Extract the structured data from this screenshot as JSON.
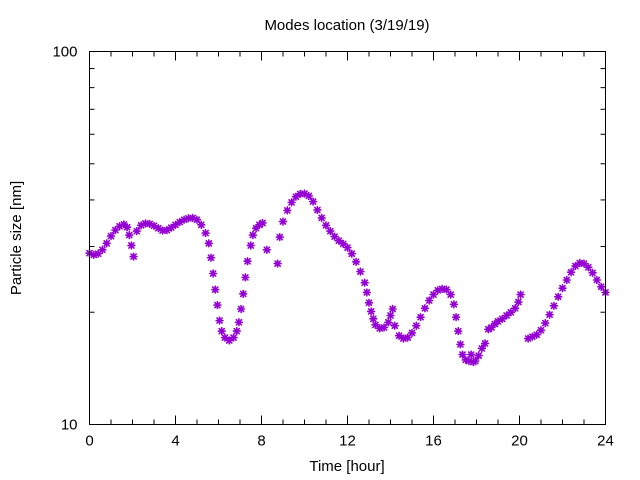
{
  "chart_data": {
    "type": "scatter",
    "title": "Modes location (3/19/19)",
    "xlabel": "Time [hour]",
    "ylabel": "Particle size [nm]",
    "xlim": [
      0,
      24
    ],
    "ylim": [
      10,
      100
    ],
    "y_scale": "log",
    "x_ticks": [
      0,
      4,
      8,
      12,
      16,
      20,
      24
    ],
    "x_tick_labels": [
      "0",
      "4",
      "8",
      "12",
      "16",
      "20",
      "24"
    ],
    "y_ticks": [
      10,
      100
    ],
    "y_tick_labels": [
      "10",
      "100"
    ],
    "grid": false,
    "legend": "none",
    "marker": "asterisk",
    "colors": {
      "series": "#9400d3",
      "axes": "#000000",
      "background": "#ffffff"
    },
    "series": [
      {
        "points": [
          [
            0.0,
            28.8
          ],
          [
            0.2,
            28.5
          ],
          [
            0.4,
            28.7
          ],
          [
            0.6,
            29.4
          ],
          [
            0.8,
            30.6
          ],
          [
            1.0,
            32.0
          ],
          [
            1.2,
            33.2
          ],
          [
            1.4,
            34.0
          ],
          [
            1.6,
            34.4
          ],
          [
            1.75,
            33.8
          ],
          [
            1.85,
            32.2
          ],
          [
            1.95,
            30.2
          ],
          [
            2.05,
            28.2
          ],
          [
            2.2,
            33.0
          ],
          [
            2.4,
            34.2
          ],
          [
            2.6,
            34.6
          ],
          [
            2.8,
            34.5
          ],
          [
            3.0,
            34.1
          ],
          [
            3.2,
            33.6
          ],
          [
            3.4,
            33.1
          ],
          [
            3.6,
            33.2
          ],
          [
            3.8,
            33.7
          ],
          [
            4.0,
            34.3
          ],
          [
            4.2,
            34.9
          ],
          [
            4.4,
            35.4
          ],
          [
            4.6,
            35.7
          ],
          [
            4.8,
            35.8
          ],
          [
            5.0,
            35.4
          ],
          [
            5.2,
            34.3
          ],
          [
            5.4,
            32.6
          ],
          [
            5.55,
            30.6
          ],
          [
            5.65,
            28.0
          ],
          [
            5.75,
            25.4
          ],
          [
            5.85,
            23.0
          ],
          [
            5.95,
            20.9
          ],
          [
            6.05,
            19.0
          ],
          [
            6.15,
            17.8
          ],
          [
            6.3,
            17.1
          ],
          [
            6.5,
            16.8
          ],
          [
            6.7,
            17.1
          ],
          [
            6.85,
            17.8
          ],
          [
            6.95,
            18.8
          ],
          [
            7.05,
            20.4
          ],
          [
            7.15,
            22.4
          ],
          [
            7.25,
            24.8
          ],
          [
            7.35,
            27.4
          ],
          [
            7.5,
            30.2
          ],
          [
            7.6,
            32.2
          ],
          [
            7.75,
            33.6
          ],
          [
            7.9,
            34.3
          ],
          [
            8.05,
            34.7
          ],
          [
            8.25,
            29.4
          ],
          [
            8.75,
            27.0
          ],
          [
            8.85,
            31.8
          ],
          [
            9.0,
            35.0
          ],
          [
            9.2,
            37.5
          ],
          [
            9.4,
            39.4
          ],
          [
            9.6,
            40.8
          ],
          [
            9.8,
            41.5
          ],
          [
            10.0,
            41.6
          ],
          [
            10.2,
            41.0
          ],
          [
            10.4,
            39.6
          ],
          [
            10.6,
            37.6
          ],
          [
            10.8,
            35.8
          ],
          [
            11.0,
            34.2
          ],
          [
            11.2,
            33.0
          ],
          [
            11.4,
            31.9
          ],
          [
            11.6,
            31.1
          ],
          [
            11.8,
            30.5
          ],
          [
            12.0,
            29.8
          ],
          [
            12.2,
            28.7
          ],
          [
            12.4,
            27.3
          ],
          [
            12.6,
            25.7
          ],
          [
            12.8,
            24.0
          ],
          [
            12.9,
            22.6
          ],
          [
            13.0,
            21.2
          ],
          [
            13.1,
            20.1
          ],
          [
            13.2,
            19.2
          ],
          [
            13.3,
            18.5
          ],
          [
            13.5,
            18.1
          ],
          [
            13.7,
            18.2
          ],
          [
            13.9,
            18.8
          ],
          [
            14.0,
            19.6
          ],
          [
            14.1,
            20.4
          ],
          [
            14.2,
            18.4
          ],
          [
            14.4,
            17.3
          ],
          [
            14.6,
            17.0
          ],
          [
            14.8,
            17.1
          ],
          [
            15.0,
            17.6
          ],
          [
            15.2,
            18.4
          ],
          [
            15.4,
            19.4
          ],
          [
            15.6,
            20.5
          ],
          [
            15.8,
            21.5
          ],
          [
            16.0,
            22.3
          ],
          [
            16.2,
            22.9
          ],
          [
            16.4,
            23.1
          ],
          [
            16.6,
            23.0
          ],
          [
            16.8,
            22.3
          ],
          [
            16.95,
            21.0
          ],
          [
            17.05,
            19.4
          ],
          [
            17.15,
            17.8
          ],
          [
            17.25,
            16.4
          ],
          [
            17.35,
            15.4
          ],
          [
            17.5,
            14.9
          ],
          [
            17.65,
            14.8
          ],
          [
            17.75,
            15.4
          ],
          [
            17.85,
            14.7
          ],
          [
            17.95,
            14.8
          ],
          [
            18.1,
            15.3
          ],
          [
            18.25,
            16.0
          ],
          [
            18.4,
            16.5
          ],
          [
            18.55,
            18.0
          ],
          [
            18.7,
            18.2
          ],
          [
            18.85,
            18.6
          ],
          [
            19.0,
            18.9
          ],
          [
            19.2,
            19.2
          ],
          [
            19.4,
            19.6
          ],
          [
            19.6,
            20.0
          ],
          [
            19.8,
            20.5
          ],
          [
            19.95,
            21.3
          ],
          [
            20.05,
            22.3
          ],
          [
            20.4,
            17.0
          ],
          [
            20.6,
            17.2
          ],
          [
            20.8,
            17.4
          ],
          [
            21.0,
            17.9
          ],
          [
            21.2,
            18.7
          ],
          [
            21.4,
            19.7
          ],
          [
            21.6,
            20.8
          ],
          [
            21.8,
            22.0
          ],
          [
            22.0,
            23.2
          ],
          [
            22.2,
            24.4
          ],
          [
            22.4,
            25.6
          ],
          [
            22.6,
            26.6
          ],
          [
            22.8,
            27.1
          ],
          [
            23.0,
            27.0
          ],
          [
            23.2,
            26.4
          ],
          [
            23.4,
            25.5
          ],
          [
            23.6,
            24.4
          ],
          [
            23.8,
            23.4
          ],
          [
            24.0,
            22.6
          ]
        ]
      }
    ]
  }
}
